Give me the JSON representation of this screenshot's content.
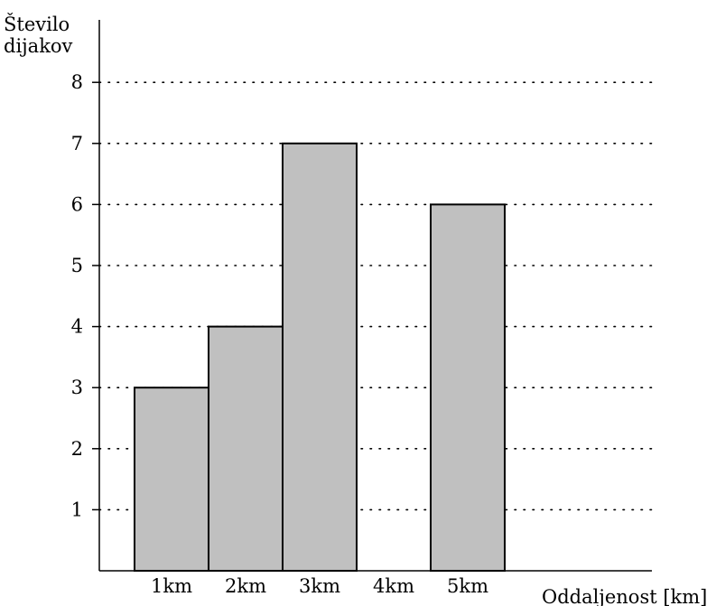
{
  "chart_data": {
    "type": "bar",
    "ylabel_lines": [
      "Število",
      "dijakov"
    ],
    "xlabel": "Oddaljenost [km]",
    "categories": [
      "1km",
      "2km",
      "3km",
      "4km",
      "5km"
    ],
    "values": [
      3,
      4,
      7,
      0,
      6
    ],
    "ylim": [
      0,
      8
    ],
    "yticks": [
      1,
      2,
      3,
      4,
      5,
      6,
      7,
      8
    ],
    "grid": true,
    "bar_color": "#c0c0c0",
    "bar_edge_color": "#000000"
  }
}
